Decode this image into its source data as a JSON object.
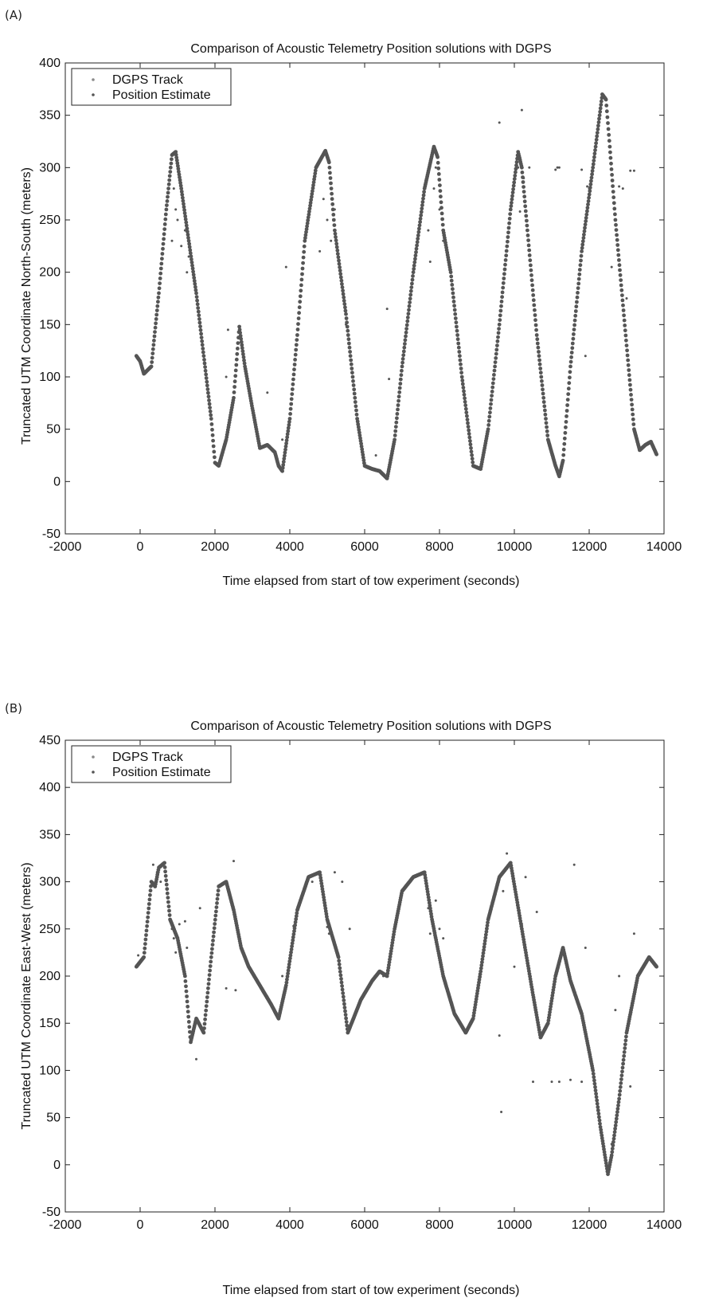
{
  "panels": [
    {
      "panel_label": "(A)",
      "legend": [
        "DGPS Track",
        "Position Estimate"
      ],
      "chart_data": {
        "type": "scatter",
        "title": "Comparison of Acoustic Telemetry Position solutions with DGPS",
        "xlabel": "Time elapsed from start of tow experiment (seconds)",
        "ylabel": "Truncated UTM Coordinate North-South (meters)",
        "xlim": [
          -2000,
          14000
        ],
        "ylim": [
          -50,
          400
        ],
        "xticks": [
          -2000,
          0,
          2000,
          4000,
          6000,
          8000,
          10000,
          12000,
          14000
        ],
        "yticks": [
          -50,
          0,
          50,
          100,
          150,
          200,
          250,
          300,
          350,
          400
        ],
        "legend_position": "top-left",
        "colors": {
          "dgps": "#8a8a8a",
          "estimate": "#555555"
        },
        "series": [
          {
            "name": "DGPS Track",
            "x": [
              -100,
              0,
              100,
              300,
              500,
              700,
              850,
              950,
              1100,
              1300,
              1500,
              1700,
              1900,
              2000,
              2100,
              2300,
              2500,
              2650,
              2800,
              3000,
              3200,
              3400,
              3600,
              3700,
              3800,
              4000,
              4200,
              4400,
              4700,
              4950,
              5050,
              5200,
              5500,
              5800,
              6000,
              6200,
              6400,
              6600,
              6800,
              7000,
              7300,
              7600,
              7850,
              7950,
              8100,
              8300,
              8600,
              8900,
              9100,
              9300,
              9600,
              9900,
              10100,
              10200,
              10350,
              10600,
              10900,
              11100,
              11200,
              11300,
              11500,
              11800,
              12100,
              12350,
              12450,
              12550,
              12700,
              13000,
              13200,
              13350,
              13500,
              13650,
              13800
            ],
            "y": [
              120,
              115,
              103,
              110,
              180,
              260,
              312,
              315,
              280,
              230,
              180,
              120,
              60,
              18,
              15,
              40,
              80,
              148,
              110,
              70,
              32,
              35,
              28,
              15,
              10,
              60,
              140,
              230,
              300,
              316,
              305,
              240,
              160,
              60,
              15,
              12,
              10,
              3,
              40,
              110,
              200,
              280,
              320,
              310,
              240,
              200,
              100,
              15,
              12,
              50,
              150,
              260,
              315,
              300,
              240,
              140,
              40,
              15,
              5,
              20,
              110,
              220,
              300,
              370,
              365,
              320,
              250,
              130,
              50,
              30,
              35,
              38,
              26
            ]
          },
          {
            "name": "Position Estimate",
            "x": [
              900,
              850,
              950,
              1000,
              1100,
              1200,
              1250,
              1300,
              2300,
              2350,
              3400,
              3800,
              3900,
              4900,
              4800,
              5000,
              5100,
              5200,
              5500,
              6300,
              6600,
              6650,
              7700,
              7750,
              7850,
              7900,
              8000,
              8100,
              9600,
              10100,
              10150,
              10200,
              10250,
              10400,
              11100,
              11150,
              11200,
              11800,
              11900,
              11950,
              12000,
              12600,
              12800,
              12900,
              13000,
              13100,
              13200
            ],
            "y": [
              280,
              230,
              260,
              250,
              225,
              240,
              200,
              215,
              100,
              145,
              85,
              40,
              205,
              270,
              220,
              250,
              230,
              260,
              150,
              25,
              165,
              98,
              240,
              210,
              280,
              300,
              260,
              230,
              343,
              300,
              258,
              355,
              290,
              300,
              298,
              300,
              300,
              298,
              120,
              282,
              280,
              205,
              282,
              280,
              175,
              297,
              297
            ]
          }
        ]
      }
    },
    {
      "panel_label": "(B)",
      "legend": [
        "DGPS Track",
        "Position Estimate"
      ],
      "chart_data": {
        "type": "scatter",
        "title": "Comparison of Acoustic Telemetry Position solutions with DGPS",
        "xlabel": "Time elapsed from start of tow experiment (seconds)",
        "ylabel": "Truncated UTM Coordinate East-West (meters)",
        "xlim": [
          -2000,
          14000
        ],
        "ylim": [
          -50,
          450
        ],
        "xticks": [
          -2000,
          0,
          2000,
          4000,
          6000,
          8000,
          10000,
          12000,
          14000
        ],
        "yticks": [
          -50,
          0,
          50,
          100,
          150,
          200,
          250,
          300,
          350,
          400,
          450
        ],
        "legend_position": "top-left",
        "colors": {
          "dgps": "#8a8a8a",
          "estimate": "#555555"
        },
        "series": [
          {
            "name": "DGPS Track",
            "x": [
              -100,
              100,
              300,
              400,
              500,
              650,
              800,
              1000,
              1200,
              1350,
              1500,
              1700,
              1900,
              2100,
              2300,
              2500,
              2700,
              2900,
              3200,
              3500,
              3700,
              3900,
              4200,
              4500,
              4800,
              5000,
              5300,
              5550,
              5700,
              5900,
              6200,
              6400,
              6600,
              6800,
              7000,
              7300,
              7600,
              7800,
              8100,
              8400,
              8700,
              8900,
              9100,
              9300,
              9600,
              9900,
              10200,
              10500,
              10700,
              10900,
              11100,
              11300,
              11500,
              11800,
              12100,
              12300,
              12500,
              12600,
              12800,
              13000,
              13300,
              13600,
              13800
            ],
            "y": [
              210,
              220,
              300,
              295,
              315,
              320,
              260,
              240,
              200,
              130,
              155,
              140,
              220,
              295,
              300,
              270,
              230,
              210,
              190,
              170,
              155,
              190,
              270,
              305,
              310,
              260,
              220,
              140,
              155,
              175,
              195,
              205,
              200,
              250,
              290,
              305,
              310,
              260,
              200,
              160,
              140,
              155,
              205,
              260,
              305,
              320,
              250,
              180,
              135,
              150,
              200,
              230,
              195,
              160,
              100,
              40,
              -10,
              10,
              70,
              140,
              200,
              220,
              210
            ]
          },
          {
            "name": "Position Estimate",
            "x": [
              -50,
              350,
              450,
              550,
              800,
              850,
              900,
              950,
              1050,
              1100,
              1200,
              1250,
              1500,
              1600,
              2300,
              2500,
              2550,
              3800,
              4100,
              4600,
              5000,
              5050,
              5200,
              5400,
              5600,
              6500,
              6800,
              7700,
              7750,
              7900,
              8000,
              8100,
              9600,
              9650,
              9700,
              9800,
              10000,
              10200,
              10300,
              10500,
              10600,
              11000,
              11200,
              11500,
              11600,
              11800,
              11900,
              12600,
              12700,
              12800,
              13100,
              13200
            ],
            "y": [
              222,
              318,
              310,
              300,
              260,
              250,
              240,
              225,
              255,
              220,
              258,
              230,
              112,
              272,
              187,
              322,
              185,
              200,
              253,
              300,
              252,
              245,
              310,
              300,
              250,
              200,
              248,
              272,
              245,
              280,
              250,
              240,
              137,
              56,
              290,
              330,
              210,
              255,
              305,
              88,
              268,
              88,
              88,
              90,
              318,
              88,
              230,
              22,
              164,
              200,
              83,
              245
            ]
          }
        ]
      }
    }
  ]
}
